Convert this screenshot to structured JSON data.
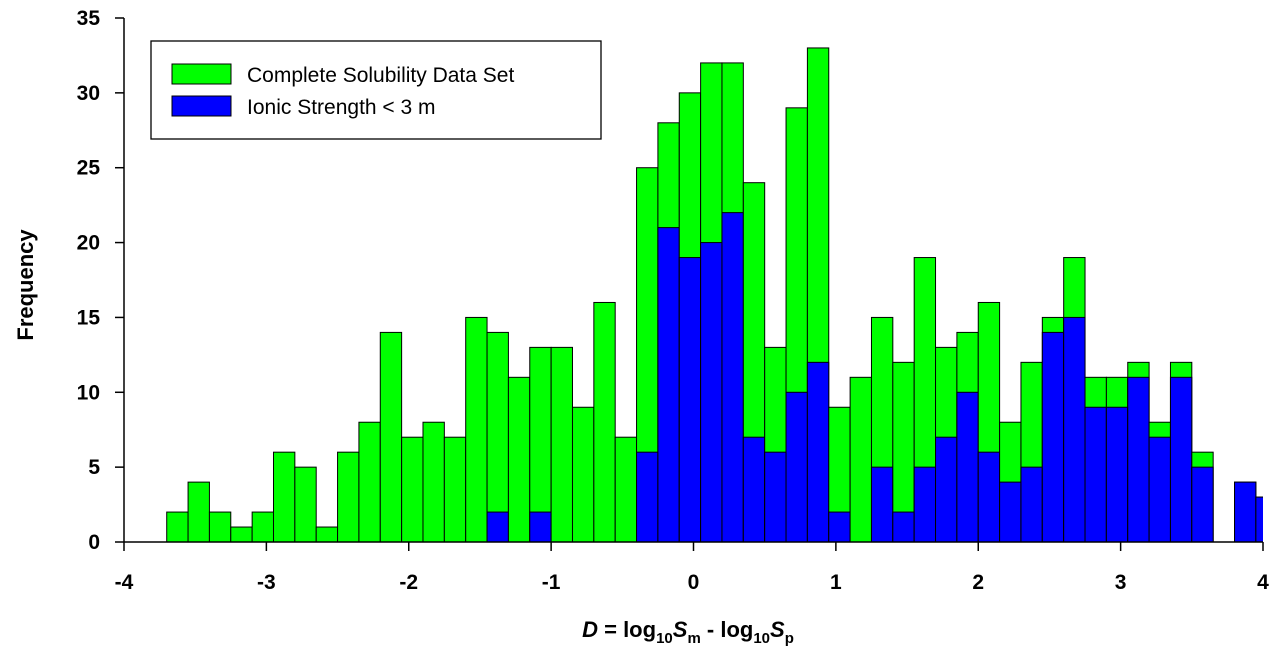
{
  "colors": {
    "complete": "#00ff00",
    "ionic": "#0000ff",
    "edge": "#000000"
  },
  "chart_data": {
    "type": "bar",
    "grid": false,
    "legend_position": "top-left",
    "xlabel_parts": {
      "italic_var": "D",
      "eq": " = log",
      "sub1": "10",
      "s1": "S",
      "s1sub": "m",
      "minus": " - log",
      "sub2": "10",
      "s2": "S",
      "s2sub": "p"
    },
    "ylabel": "Frequency",
    "xlim": [
      -4,
      4
    ],
    "ylim": [
      0,
      35
    ],
    "x_ticks": [
      "-4",
      "-3",
      "-2",
      "-1",
      "0",
      "1",
      "2",
      "3",
      "4"
    ],
    "y_ticks": [
      "0",
      "5",
      "10",
      "15",
      "20",
      "25",
      "30",
      "35"
    ],
    "bin_width": 0.15,
    "bin_left_edges": [
      -3.7,
      -3.55,
      -3.4,
      -3.25,
      -3.1,
      -2.95,
      -2.8,
      -2.65,
      -2.5,
      -2.35,
      -2.2,
      -2.05,
      -1.9,
      -1.75,
      -1.6,
      -1.45,
      -1.3,
      -1.15,
      -1.0,
      -0.85,
      -0.7,
      -0.55,
      -0.4,
      -0.25,
      -0.1,
      0.05,
      0.2,
      0.35,
      0.5,
      0.65,
      0.8,
      0.95,
      1.1,
      1.25,
      1.4,
      1.55,
      1.7,
      1.85,
      2.0,
      2.15,
      2.3,
      2.45,
      2.6,
      2.75,
      2.9,
      3.05,
      3.2,
      3.35,
      3.5,
      3.65,
      3.8,
      3.95
    ],
    "series": [
      {
        "name": "Complete Solubility Data Set",
        "values": [
          2,
          4,
          2,
          1,
          2,
          6,
          5,
          1,
          6,
          8,
          14,
          7,
          8,
          7,
          15,
          14,
          11,
          13,
          13,
          9,
          16,
          7,
          25,
          28,
          30,
          32,
          32,
          24,
          13,
          29,
          33,
          9,
          11,
          15,
          12,
          19,
          13,
          14,
          16,
          8,
          12,
          15,
          19,
          11,
          11,
          12,
          8,
          12,
          6,
          0,
          4,
          3
        ]
      },
      {
        "name": "Ionic Strength < 3 m",
        "values": [
          0,
          0,
          0,
          0,
          0,
          0,
          0,
          0,
          0,
          0,
          0,
          0,
          0,
          0,
          0,
          2,
          0,
          2,
          0,
          0,
          0,
          0,
          6,
          21,
          19,
          20,
          22,
          7,
          6,
          10,
          12,
          2,
          0,
          5,
          2,
          5,
          7,
          10,
          6,
          4,
          5,
          14,
          15,
          9,
          9,
          11,
          7,
          11,
          5,
          0,
          4,
          3
        ]
      }
    ]
  }
}
